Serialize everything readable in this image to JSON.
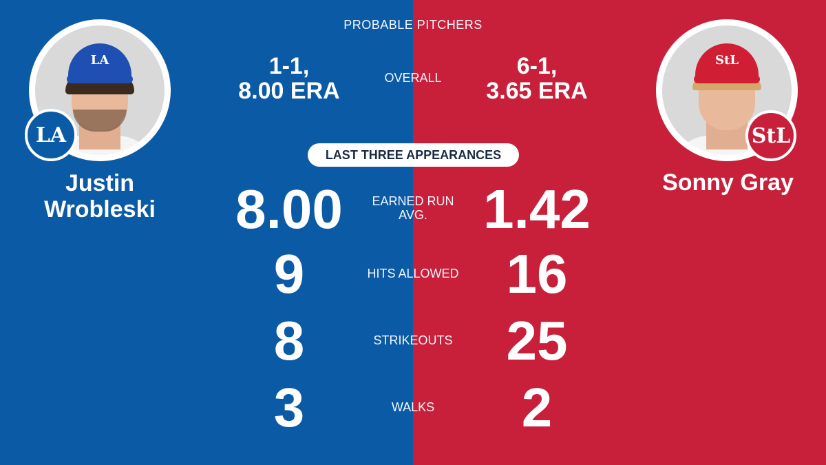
{
  "header": {
    "title": "PROBABLE PITCHERS"
  },
  "colors": {
    "dodgers_blue": "#0b5aa6",
    "cardinals_red": "#c8203a"
  },
  "players": {
    "left": {
      "name_line1": "Justin",
      "name_line2": "Wrobleski",
      "team_logo_text": "LA",
      "overall_line1": "1-1,",
      "overall_line2": "8.00 ERA"
    },
    "right": {
      "name": "Sonny Gray",
      "team_logo_text": "STL",
      "overall_line1": "6-1,",
      "overall_line2": "3.65 ERA"
    }
  },
  "labels": {
    "overall": "OVERALL",
    "last_three": "LAST THREE APPEARANCES"
  },
  "stats": [
    {
      "label_line1": "EARNED RUN",
      "label_line2": "AVG.",
      "left": "8.00",
      "right": "1.42"
    },
    {
      "label_line1": "HITS ALLOWED",
      "label_line2": "",
      "left": "9",
      "right": "16"
    },
    {
      "label_line1": "STRIKEOUTS",
      "label_line2": "",
      "left": "8",
      "right": "25"
    },
    {
      "label_line1": "WALKS",
      "label_line2": "",
      "left": "3",
      "right": "2"
    }
  ]
}
